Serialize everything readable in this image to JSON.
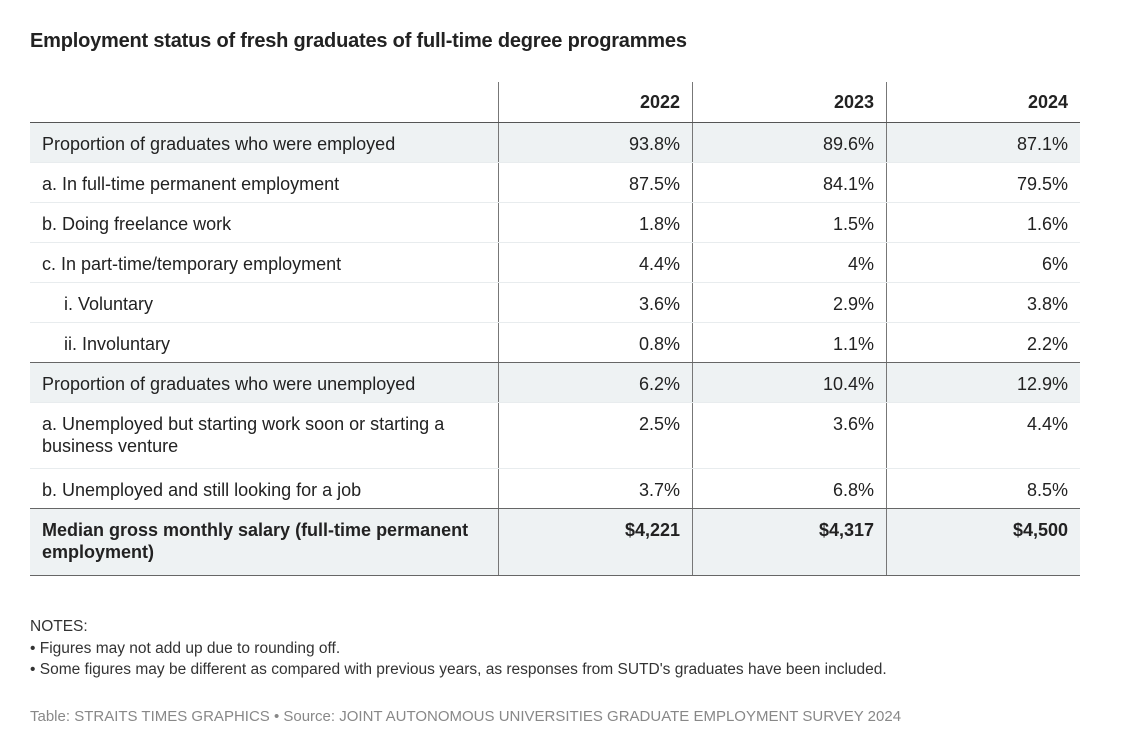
{
  "chart_data": {
    "type": "table",
    "title": "Employment status of fresh graduates of full-time degree programmes",
    "columns": [
      "",
      "2022",
      "2023",
      "2024"
    ],
    "rows": [
      {
        "label": "Proportion of graduates who were employed",
        "values": [
          "93.8%",
          "89.6%",
          "87.1%"
        ],
        "style": "shade"
      },
      {
        "label": "a. In full-time permanent employment",
        "values": [
          "87.5%",
          "84.1%",
          "79.5%"
        ],
        "style": ""
      },
      {
        "label": "b. Doing freelance work",
        "values": [
          "1.8%",
          "1.5%",
          "1.6%"
        ],
        "style": ""
      },
      {
        "label": "c. In part-time/temporary employment",
        "values": [
          "4.4%",
          "4%",
          "6%"
        ],
        "style": ""
      },
      {
        "label": "i. Voluntary",
        "values": [
          "3.6%",
          "2.9%",
          "3.8%"
        ],
        "style": "indent"
      },
      {
        "label": "ii. Involuntary",
        "values": [
          "0.8%",
          "1.1%",
          "2.2%"
        ],
        "style": "indent endsec"
      },
      {
        "label": "Proportion of graduates who were unemployed",
        "values": [
          "6.2%",
          "10.4%",
          "12.9%"
        ],
        "style": "shade"
      },
      {
        "label": "a. Unemployed but starting work soon or starting a business venture",
        "values": [
          "2.5%",
          "3.6%",
          "4.4%"
        ],
        "style": "two"
      },
      {
        "label": "b. Unemployed and still looking for a job",
        "values": [
          "3.7%",
          "6.8%",
          "8.5%"
        ],
        "style": "endsec"
      },
      {
        "label": "Median gross monthly salary (full-time permanent employment)",
        "values": [
          "$4,221",
          "$4,317",
          "$4,500"
        ],
        "style": "shade bold endsec"
      }
    ],
    "colors": {
      "shade": "#eef2f3",
      "text": "#222222",
      "source": "#888888"
    }
  },
  "notes": {
    "heading": "NOTES:",
    "items": [
      "• Figures may not add up due to rounding off.",
      "• Some figures may be different as compared with previous years, as responses from SUTD's graduates have been included."
    ]
  },
  "source": "Table: STRAITS TIMES GRAPHICS • Source: JOINT AUTONOMOUS UNIVERSITIES GRADUATE EMPLOYMENT SURVEY 2024"
}
